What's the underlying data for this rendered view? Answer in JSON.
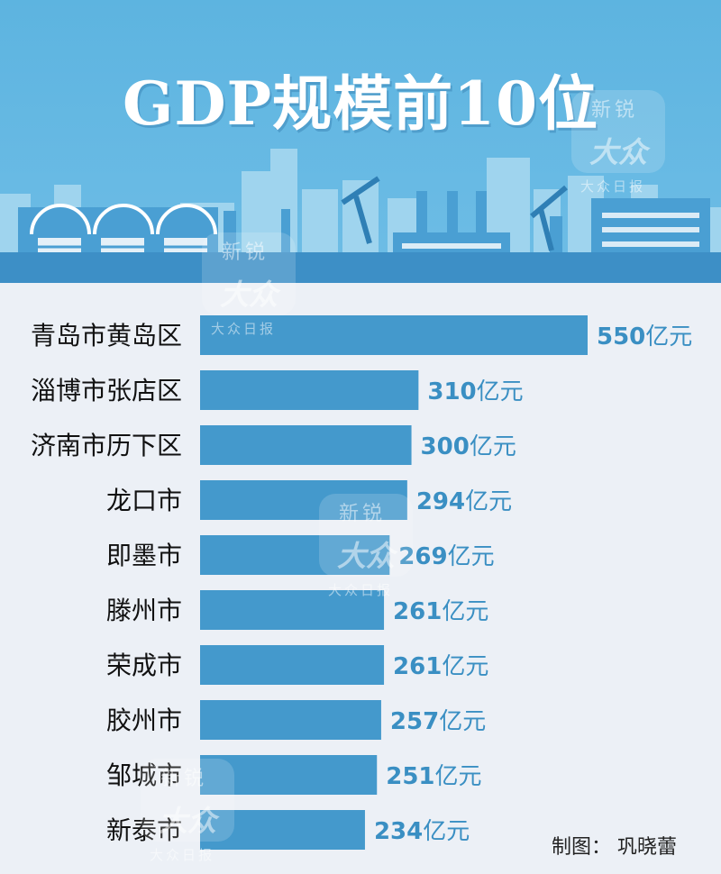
{
  "header": {
    "title": "GDP规模前10位"
  },
  "chart_data": {
    "type": "bar",
    "orientation": "horizontal",
    "categories": [
      "青岛市黄岛区",
      "淄博市张店区",
      "济南市历下区",
      "龙口市",
      "即墨市",
      "滕州市",
      "荣成市",
      "胶州市",
      "邹城市",
      "新泰市"
    ],
    "values": [
      550,
      310,
      300,
      294,
      269,
      261,
      261,
      257,
      251,
      234
    ],
    "value_suffix": "亿元",
    "bar_color": "#4499cc",
    "label_color": "#3a8fc3"
  },
  "watermark": {
    "top": "新锐",
    "mid": "大众",
    "bot": "大众日报"
  },
  "credit": "制图：  巩晓蕾",
  "colors": {
    "sky": "#5db4e0",
    "building_light": "#9fd4ee",
    "building_mid": "#4a9fd3",
    "ground": "#3d8fc6"
  }
}
